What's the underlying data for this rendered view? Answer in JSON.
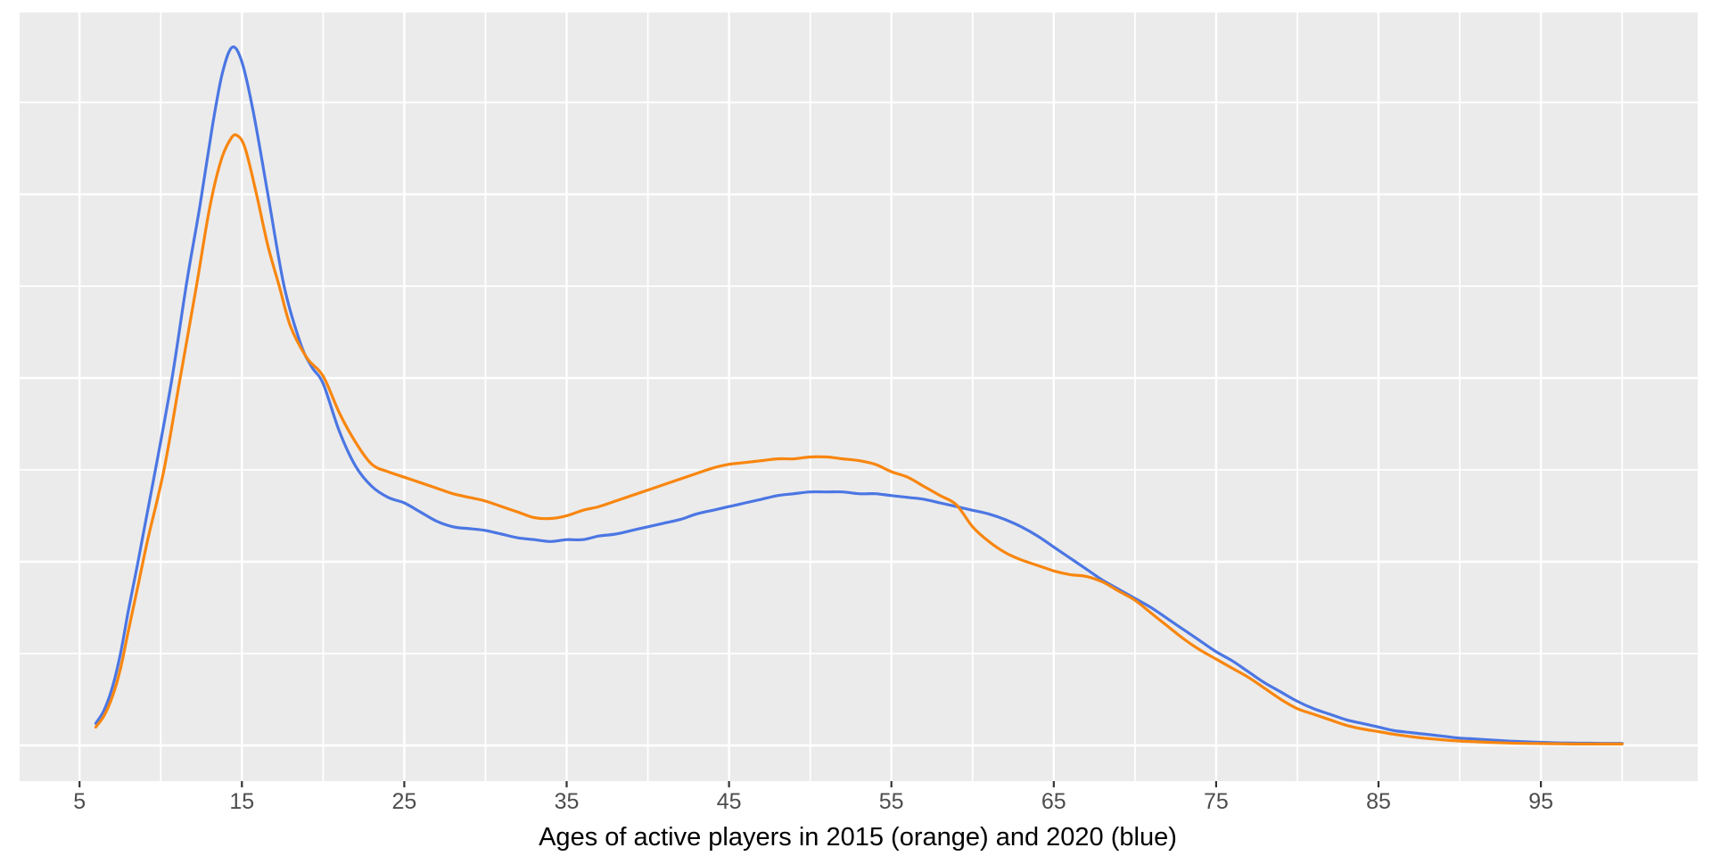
{
  "figure": {
    "background": "#FFFFFF",
    "panel_background": "#EBEBEB",
    "gridline_color": "#FFFFFF",
    "tick_mark_color": "#333333",
    "tick_label_color": "#4D4D4D",
    "axis_title_color": "#000000",
    "series_colors": {
      "players_2015": "#F8860F",
      "players_2020": "#4B76E3"
    }
  },
  "x_axis": {
    "title": "Ages of active players in 2015 (orange) and 2020 (blue)",
    "ticks": [
      {
        "value": 5,
        "label": "5"
      },
      {
        "value": 15,
        "label": "15"
      },
      {
        "value": 25,
        "label": "25"
      },
      {
        "value": 35,
        "label": "35"
      },
      {
        "value": 45,
        "label": "45"
      },
      {
        "value": 55,
        "label": "55"
      },
      {
        "value": 65,
        "label": "65"
      },
      {
        "value": 75,
        "label": "75"
      },
      {
        "value": 85,
        "label": "85"
      },
      {
        "value": 95,
        "label": "95"
      }
    ]
  },
  "y_axis": {
    "title": "",
    "ticks": []
  },
  "chart_data": {
    "type": "line",
    "title": "",
    "xlabel": "Ages of active players in 2015 (orange) and 2020 (blue)",
    "ylabel": "",
    "xlim": [
      1.3,
      104.7
    ],
    "ylim": [
      -0.0019,
      0.0399
    ],
    "grid": "on",
    "legend": "none",
    "x_major_gridlines": [
      5,
      15,
      25,
      35,
      45,
      55,
      65,
      75,
      85,
      95
    ],
    "x_minor_gridlines": [
      10,
      20,
      30,
      40,
      50,
      60,
      70,
      80,
      90,
      100
    ],
    "y_major_gridlines": [
      0,
      0.01,
      0.02,
      0.03
    ],
    "y_minor_gridlines": [
      0.005,
      0.015,
      0.025,
      0.035
    ],
    "series": [
      {
        "name": "2020",
        "color": "#4B76E3",
        "points": [
          [
            6,
            0.0012
          ],
          [
            6.5,
            0.0019
          ],
          [
            7,
            0.0031
          ],
          [
            7.5,
            0.0049
          ],
          [
            8,
            0.0073
          ],
          [
            8.6,
            0.01
          ],
          [
            9.2,
            0.0128
          ],
          [
            9.8,
            0.0156
          ],
          [
            10.7,
            0.02
          ],
          [
            11.6,
            0.0252
          ],
          [
            12.4,
            0.0293
          ],
          [
            13.2,
            0.0338
          ],
          [
            13.8,
            0.0366
          ],
          [
            14.4,
            0.038
          ],
          [
            15,
            0.0372
          ],
          [
            15.7,
            0.0345
          ],
          [
            16.6,
            0.03
          ],
          [
            17.6,
            0.025
          ],
          [
            18.6,
            0.0219
          ],
          [
            19.3,
            0.0206
          ],
          [
            20,
            0.0197
          ],
          [
            21,
            0.0171
          ],
          [
            22,
            0.0152
          ],
          [
            23,
            0.0141
          ],
          [
            24,
            0.0135
          ],
          [
            25,
            0.0132
          ],
          [
            26,
            0.0127
          ],
          [
            27,
            0.0122
          ],
          [
            28,
            0.0119
          ],
          [
            29,
            0.0118
          ],
          [
            30,
            0.0117
          ],
          [
            31,
            0.0115
          ],
          [
            32,
            0.0113
          ],
          [
            33,
            0.0112
          ],
          [
            34,
            0.0111
          ],
          [
            35,
            0.0112
          ],
          [
            36,
            0.0112
          ],
          [
            37,
            0.0114
          ],
          [
            38,
            0.0115
          ],
          [
            39,
            0.0117
          ],
          [
            40,
            0.0119
          ],
          [
            41,
            0.0121
          ],
          [
            42,
            0.0123
          ],
          [
            43,
            0.0126
          ],
          [
            44,
            0.0128
          ],
          [
            45,
            0.013
          ],
          [
            46,
            0.0132
          ],
          [
            47,
            0.0134
          ],
          [
            48,
            0.0136
          ],
          [
            49,
            0.0137
          ],
          [
            50,
            0.0138
          ],
          [
            51,
            0.0138
          ],
          [
            52,
            0.0138
          ],
          [
            53,
            0.0137
          ],
          [
            54,
            0.0137
          ],
          [
            55,
            0.0136
          ],
          [
            56,
            0.0135
          ],
          [
            57,
            0.0134
          ],
          [
            58,
            0.0132
          ],
          [
            59,
            0.013
          ],
          [
            60,
            0.0128
          ],
          [
            61,
            0.0126
          ],
          [
            62,
            0.0123
          ],
          [
            63,
            0.0119
          ],
          [
            64,
            0.0114
          ],
          [
            65,
            0.0108
          ],
          [
            66,
            0.0102
          ],
          [
            67,
            0.0096
          ],
          [
            68,
            0.009
          ],
          [
            69,
            0.0085
          ],
          [
            70,
            0.008
          ],
          [
            71,
            0.0075
          ],
          [
            72,
            0.0069
          ],
          [
            73,
            0.0063
          ],
          [
            74,
            0.0057
          ],
          [
            75,
            0.0051
          ],
          [
            76,
            0.0046
          ],
          [
            77,
            0.004
          ],
          [
            78,
            0.0034
          ],
          [
            79,
            0.0029
          ],
          [
            80,
            0.0024
          ],
          [
            81,
            0.002
          ],
          [
            82,
            0.0017
          ],
          [
            83,
            0.0014
          ],
          [
            84,
            0.0012
          ],
          [
            85,
            0.001
          ],
          [
            86,
            0.0008
          ],
          [
            87,
            0.0007
          ],
          [
            88,
            0.0006
          ],
          [
            89,
            0.0005
          ],
          [
            90,
            0.0004
          ],
          [
            91,
            0.00035
          ],
          [
            92,
            0.00029
          ],
          [
            93,
            0.00024
          ],
          [
            94,
            0.0002
          ],
          [
            95,
            0.00017
          ],
          [
            96,
            0.00014
          ],
          [
            97,
            0.00013
          ],
          [
            98,
            0.00012
          ],
          [
            99,
            0.00011
          ],
          [
            100,
            0.00011
          ]
        ]
      },
      {
        "name": "2015",
        "color": "#F8860F",
        "points": [
          [
            6,
            0.001
          ],
          [
            6.5,
            0.0016
          ],
          [
            7,
            0.0026
          ],
          [
            7.5,
            0.0041
          ],
          [
            8,
            0.0062
          ],
          [
            8.6,
            0.0087
          ],
          [
            9.2,
            0.0112
          ],
          [
            10.2,
            0.015
          ],
          [
            11.2,
            0.02
          ],
          [
            12.2,
            0.025
          ],
          [
            13,
            0.0292
          ],
          [
            13.7,
            0.0318
          ],
          [
            14.3,
            0.033
          ],
          [
            14.7,
            0.0332
          ],
          [
            15.2,
            0.0325
          ],
          [
            15.9,
            0.03
          ],
          [
            16.6,
            0.0272
          ],
          [
            17.3,
            0.025
          ],
          [
            18,
            0.0228
          ],
          [
            19,
            0.0211
          ],
          [
            20,
            0.0201
          ],
          [
            21,
            0.0181
          ],
          [
            22,
            0.0165
          ],
          [
            23,
            0.0153
          ],
          [
            24,
            0.0149
          ],
          [
            25,
            0.0146
          ],
          [
            26,
            0.0143
          ],
          [
            27,
            0.014
          ],
          [
            28,
            0.0137
          ],
          [
            29,
            0.0135
          ],
          [
            30,
            0.0133
          ],
          [
            31,
            0.013
          ],
          [
            32,
            0.0127
          ],
          [
            33,
            0.0124
          ],
          [
            34,
            0.01235
          ],
          [
            35,
            0.0125
          ],
          [
            36,
            0.0128
          ],
          [
            37,
            0.013
          ],
          [
            38,
            0.0133
          ],
          [
            39,
            0.0136
          ],
          [
            40,
            0.0139
          ],
          [
            41,
            0.0142
          ],
          [
            42,
            0.0145
          ],
          [
            43,
            0.0148
          ],
          [
            44,
            0.0151
          ],
          [
            45,
            0.0153
          ],
          [
            46,
            0.0154
          ],
          [
            47,
            0.0155
          ],
          [
            48,
            0.0156
          ],
          [
            49,
            0.0156
          ],
          [
            50,
            0.0157
          ],
          [
            51,
            0.0157
          ],
          [
            52,
            0.0156
          ],
          [
            53,
            0.0155
          ],
          [
            54,
            0.0153
          ],
          [
            55,
            0.0149
          ],
          [
            56,
            0.0146
          ],
          [
            57,
            0.0141
          ],
          [
            58,
            0.0136
          ],
          [
            59,
            0.0131
          ],
          [
            60,
            0.0119
          ],
          [
            61,
            0.0111
          ],
          [
            62,
            0.0105
          ],
          [
            63,
            0.0101
          ],
          [
            64,
            0.0098
          ],
          [
            65,
            0.0095
          ],
          [
            66,
            0.0093
          ],
          [
            67,
            0.0092
          ],
          [
            68,
            0.0089
          ],
          [
            69,
            0.0084
          ],
          [
            70,
            0.0079
          ],
          [
            71,
            0.0072
          ],
          [
            72,
            0.0065
          ],
          [
            73,
            0.0058
          ],
          [
            74,
            0.0052
          ],
          [
            75,
            0.0047
          ],
          [
            76,
            0.0042
          ],
          [
            77,
            0.0037
          ],
          [
            78,
            0.0031
          ],
          [
            79,
            0.0025
          ],
          [
            80,
            0.002
          ],
          [
            81,
            0.0017
          ],
          [
            82,
            0.0014
          ],
          [
            83,
            0.0011
          ],
          [
            84,
            0.0009
          ],
          [
            85,
            0.00075
          ],
          [
            86,
            0.0006
          ],
          [
            87,
            0.00048
          ],
          [
            88,
            0.00038
          ],
          [
            89,
            0.0003
          ],
          [
            90,
            0.00024
          ],
          [
            91,
            0.0002
          ],
          [
            92,
            0.00016
          ],
          [
            93,
            0.00013
          ],
          [
            94,
            0.00011
          ],
          [
            95,
            0.0001
          ],
          [
            96,
            9e-05
          ],
          [
            97,
            8e-05
          ],
          [
            98,
            8e-05
          ],
          [
            99,
            8e-05
          ],
          [
            100,
            8e-05
          ]
        ]
      }
    ]
  }
}
